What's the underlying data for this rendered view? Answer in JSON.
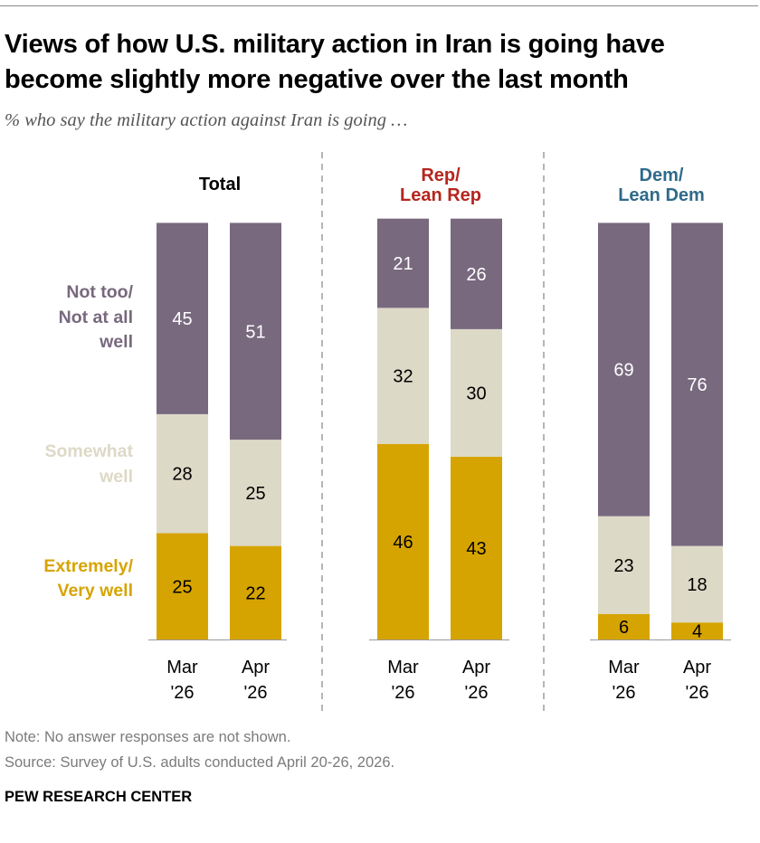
{
  "title": "Views of how U.S. military action in Iran is going have become slightly more negative over the last month",
  "subtitle": "% who say the military action against Iran is going …",
  "colors": {
    "not_well": "#78697e",
    "somewhat": "#ddd9c7",
    "very_well": "#d6a400",
    "rep": "#b5261e",
    "dem": "#2f6a8a",
    "axis": "#999999",
    "divider": "#b5b5b5"
  },
  "chart_data": {
    "type": "bar",
    "stacked": true,
    "ylim": [
      0,
      100
    ],
    "series": [
      {
        "key": "very_well",
        "name": "Extremely/ Very well",
        "label_lines": [
          "Extremely/",
          "Very well"
        ],
        "color": "#d6a400"
      },
      {
        "key": "somewhat",
        "name": "Somewhat well",
        "label_lines": [
          "Somewhat",
          "well"
        ],
        "color": "#ddd9c7"
      },
      {
        "key": "not_well",
        "name": "Not too/ Not at all well",
        "label_lines": [
          "Not too/",
          "Not at all",
          "well"
        ],
        "color": "#78697e"
      }
    ],
    "panels": [
      {
        "name": "Total",
        "label_lines": [
          "Total"
        ],
        "label_color": "#000000",
        "bars": [
          {
            "x_lines": [
              "Mar",
              "'26"
            ],
            "very_well": 25,
            "somewhat": 28,
            "not_well": 45
          },
          {
            "x_lines": [
              "Apr",
              "'26"
            ],
            "very_well": 22,
            "somewhat": 25,
            "not_well": 51
          }
        ]
      },
      {
        "name": "Rep/ Lean Rep",
        "label_lines": [
          "Rep/",
          "Lean Rep"
        ],
        "label_color": "#b5261e",
        "bars": [
          {
            "x_lines": [
              "Mar",
              "'26"
            ],
            "very_well": 46,
            "somewhat": 32,
            "not_well": 21
          },
          {
            "x_lines": [
              "Apr",
              "'26"
            ],
            "very_well": 43,
            "somewhat": 30,
            "not_well": 26
          }
        ]
      },
      {
        "name": "Dem/ Lean Dem",
        "label_lines": [
          "Dem/",
          "Lean Dem"
        ],
        "label_color": "#2f6a8a",
        "bars": [
          {
            "x_lines": [
              "Mar",
              "'26"
            ],
            "very_well": 6,
            "somewhat": 23,
            "not_well": 69
          },
          {
            "x_lines": [
              "Apr",
              "'26"
            ],
            "very_well": 4,
            "somewhat": 18,
            "not_well": 76
          }
        ]
      }
    ]
  },
  "footer": {
    "note": "Note: No answer responses are not shown.",
    "source": "Source: Survey of U.S. adults conducted April 20-26, 2026.",
    "brand": "PEW RESEARCH CENTER"
  }
}
